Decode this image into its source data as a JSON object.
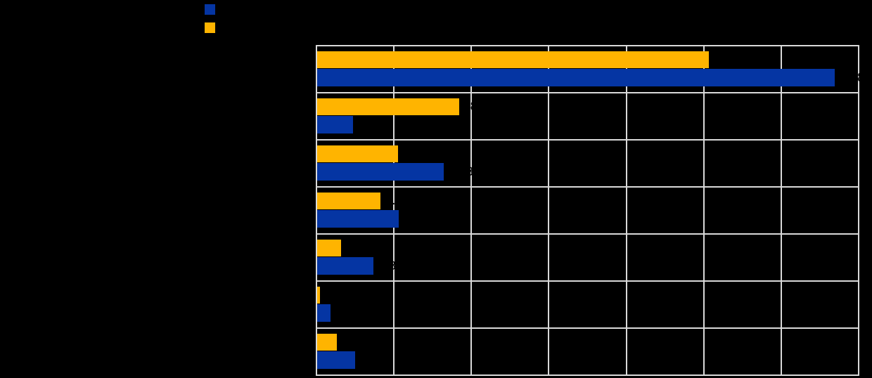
{
  "page": {
    "background_color": "#000000",
    "text_color": "#000000"
  },
  "title": "",
  "legend": {
    "position": "top-left",
    "items": [
      {
        "label": "",
        "color": "#0535A3"
      },
      {
        "label": "",
        "color": "#FFB400"
      }
    ]
  },
  "chart_data": {
    "type": "bar",
    "orientation": "horizontal",
    "title": "",
    "xlabel": "",
    "ylabel": "",
    "xlim": [
      0,
      70
    ],
    "x_tick_step": 10,
    "grid": true,
    "gridline_color": "#D9D9D9",
    "data_labels": true,
    "data_label_color": "#000000",
    "legend_position": "top-left",
    "categories": [
      "",
      "",
      "",
      "",
      "",
      "",
      ""
    ],
    "series": [
      {
        "name": "",
        "color": "#0535A3",
        "values": [
          66.8,
          4.6,
          16.3,
          10.5,
          7.3,
          1.7,
          4.9
        ]
      },
      {
        "name": "",
        "color": "#FFB400",
        "values": [
          50.6,
          18.3,
          10.4,
          8.2,
          3.1,
          0.4,
          2.5
        ]
      }
    ]
  }
}
